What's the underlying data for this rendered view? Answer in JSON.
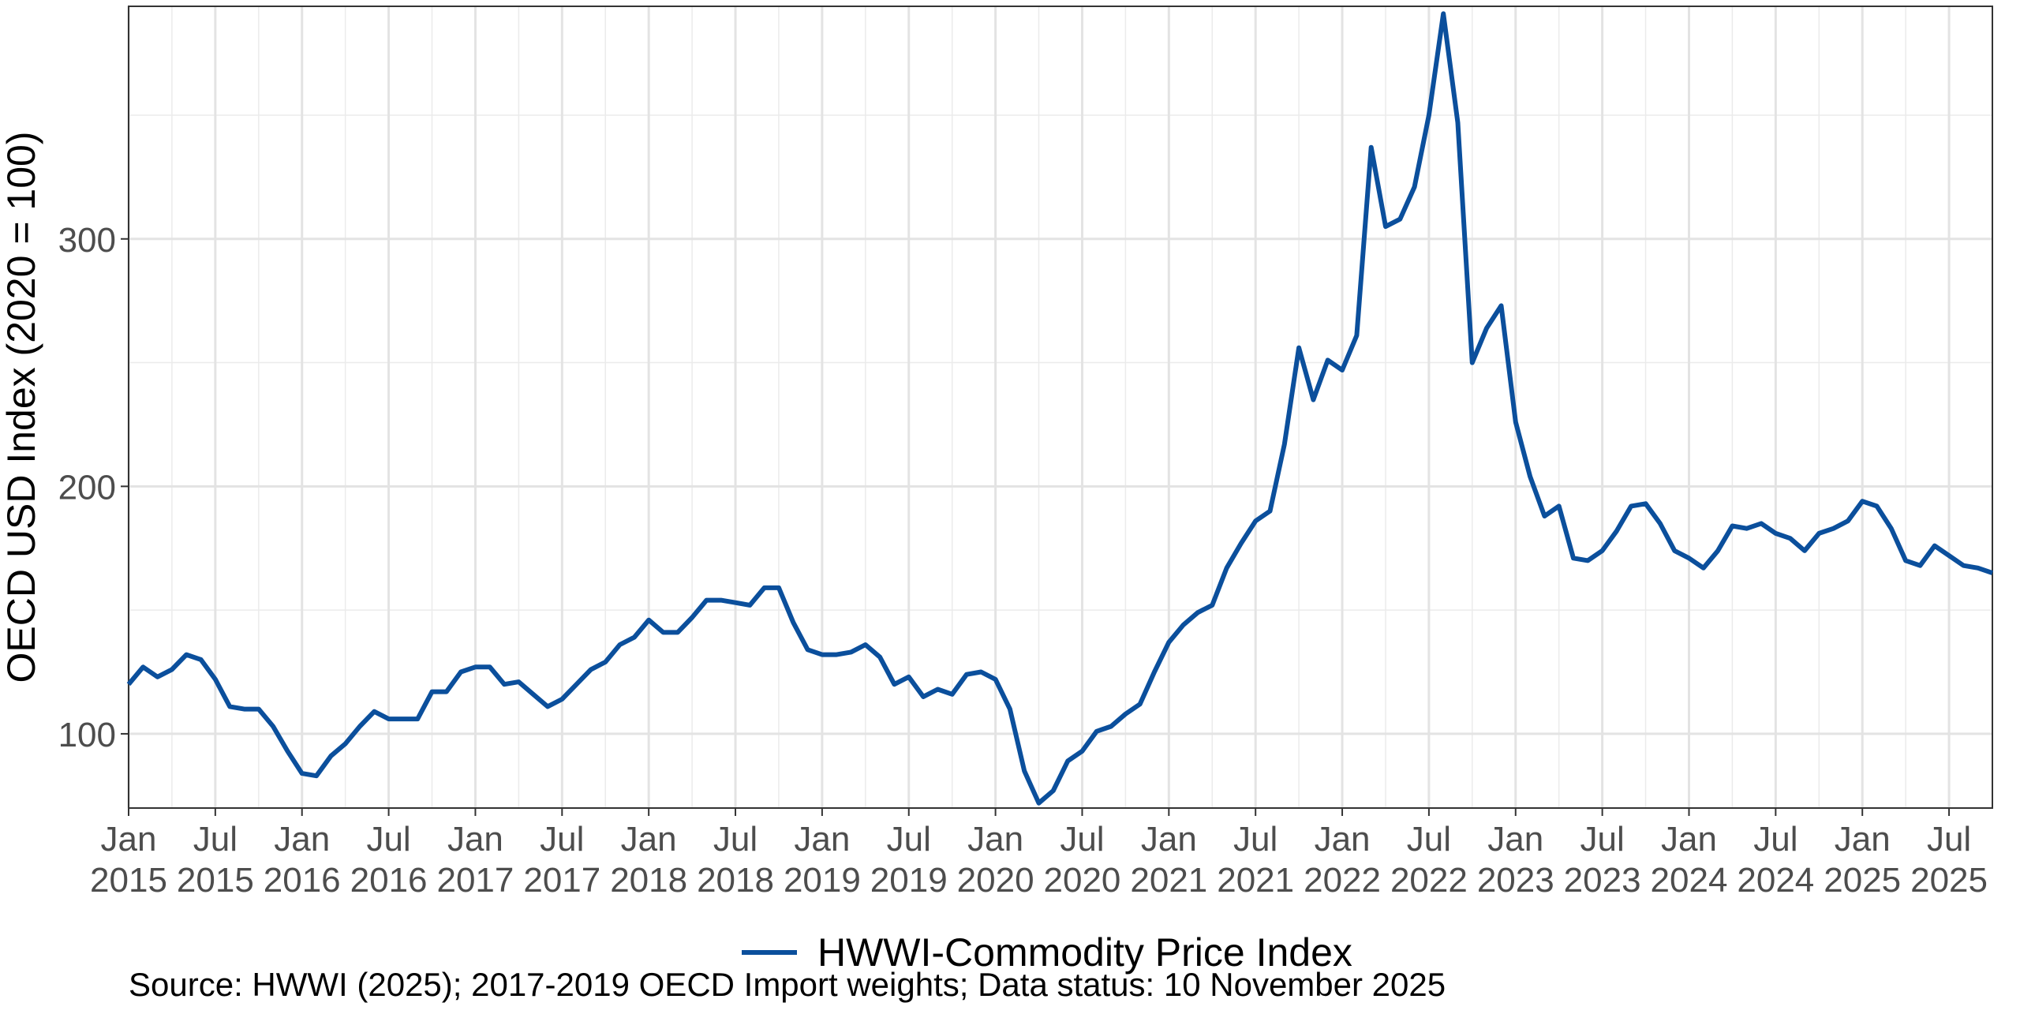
{
  "chart_data": {
    "type": "line",
    "ylabel": "OECD USD Index (2020 = 100)",
    "xlabel": "",
    "ylim": [
      70,
      394
    ],
    "y_ticks": [
      100,
      200,
      300
    ],
    "x_ticks": [
      {
        "date": "2015-01",
        "label_month": "Jan",
        "label_year": "2015"
      },
      {
        "date": "2015-07",
        "label_month": "Jul",
        "label_year": "2015"
      },
      {
        "date": "2016-01",
        "label_month": "Jan",
        "label_year": "2016"
      },
      {
        "date": "2016-07",
        "label_month": "Jul",
        "label_year": "2016"
      },
      {
        "date": "2017-01",
        "label_month": "Jan",
        "label_year": "2017"
      },
      {
        "date": "2017-07",
        "label_month": "Jul",
        "label_year": "2017"
      },
      {
        "date": "2018-01",
        "label_month": "Jan",
        "label_year": "2018"
      },
      {
        "date": "2018-07",
        "label_month": "Jul",
        "label_year": "2018"
      },
      {
        "date": "2019-01",
        "label_month": "Jan",
        "label_year": "2019"
      },
      {
        "date": "2019-07",
        "label_month": "Jul",
        "label_year": "2019"
      },
      {
        "date": "2020-01",
        "label_month": "Jan",
        "label_year": "2020"
      },
      {
        "date": "2020-07",
        "label_month": "Jul",
        "label_year": "2020"
      },
      {
        "date": "2021-01",
        "label_month": "Jan",
        "label_year": "2021"
      },
      {
        "date": "2021-07",
        "label_month": "Jul",
        "label_year": "2021"
      },
      {
        "date": "2022-01",
        "label_month": "Jan",
        "label_year": "2022"
      },
      {
        "date": "2022-07",
        "label_month": "Jul",
        "label_year": "2022"
      },
      {
        "date": "2023-01",
        "label_month": "Jan",
        "label_year": "2023"
      },
      {
        "date": "2023-07",
        "label_month": "Jul",
        "label_year": "2023"
      },
      {
        "date": "2024-01",
        "label_month": "Jan",
        "label_year": "2024"
      },
      {
        "date": "2024-07",
        "label_month": "Jul",
        "label_year": "2024"
      },
      {
        "date": "2025-01",
        "label_month": "Jan",
        "label_year": "2025"
      },
      {
        "date": "2025-07",
        "label_month": "Jul",
        "label_year": "2025"
      }
    ],
    "grid": true,
    "legend_position": "bottom",
    "series": [
      {
        "name": "HWWI-Commodity Price Index",
        "color": "#0b4f9c",
        "x": [
          "2015-01",
          "2015-02",
          "2015-03",
          "2015-04",
          "2015-05",
          "2015-06",
          "2015-07",
          "2015-08",
          "2015-09",
          "2015-10",
          "2015-11",
          "2015-12",
          "2016-01",
          "2016-02",
          "2016-03",
          "2016-04",
          "2016-05",
          "2016-06",
          "2016-07",
          "2016-08",
          "2016-09",
          "2016-10",
          "2016-11",
          "2016-12",
          "2017-01",
          "2017-02",
          "2017-03",
          "2017-04",
          "2017-05",
          "2017-06",
          "2017-07",
          "2017-08",
          "2017-09",
          "2017-10",
          "2017-11",
          "2017-12",
          "2018-01",
          "2018-02",
          "2018-03",
          "2018-04",
          "2018-05",
          "2018-06",
          "2018-07",
          "2018-08",
          "2018-09",
          "2018-10",
          "2018-11",
          "2018-12",
          "2019-01",
          "2019-02",
          "2019-03",
          "2019-04",
          "2019-05",
          "2019-06",
          "2019-07",
          "2019-08",
          "2019-09",
          "2019-10",
          "2019-11",
          "2019-12",
          "2020-01",
          "2020-02",
          "2020-03",
          "2020-04",
          "2020-05",
          "2020-06",
          "2020-07",
          "2020-08",
          "2020-09",
          "2020-10",
          "2020-11",
          "2020-12",
          "2021-01",
          "2021-02",
          "2021-03",
          "2021-04",
          "2021-05",
          "2021-06",
          "2021-07",
          "2021-08",
          "2021-09",
          "2021-10",
          "2021-11",
          "2021-12",
          "2022-01",
          "2022-02",
          "2022-03",
          "2022-04",
          "2022-05",
          "2022-06",
          "2022-07",
          "2022-08",
          "2022-09",
          "2022-10",
          "2022-11",
          "2022-12",
          "2023-01",
          "2023-02",
          "2023-03",
          "2023-04",
          "2023-05",
          "2023-06",
          "2023-07",
          "2023-08",
          "2023-09",
          "2023-10",
          "2023-11",
          "2023-12",
          "2024-01",
          "2024-02",
          "2024-03",
          "2024-04",
          "2024-05",
          "2024-06",
          "2024-07",
          "2024-08",
          "2024-09",
          "2024-10",
          "2024-11",
          "2024-12",
          "2025-01",
          "2025-02",
          "2025-03",
          "2025-04",
          "2025-05",
          "2025-06",
          "2025-07",
          "2025-08",
          "2025-09",
          "2025-10"
        ],
        "values": [
          120,
          127,
          123,
          126,
          132,
          130,
          122,
          111,
          110,
          110,
          103,
          93,
          84,
          83,
          91,
          96,
          103,
          109,
          106,
          106,
          106,
          117,
          117,
          125,
          127,
          127,
          120,
          121,
          116,
          111,
          114,
          120,
          126,
          129,
          136,
          139,
          146,
          141,
          141,
          147,
          154,
          154,
          153,
          152,
          159,
          159,
          145,
          134,
          132,
          132,
          133,
          136,
          131,
          120,
          123,
          115,
          118,
          116,
          124,
          125,
          122,
          110,
          85,
          72,
          77,
          89,
          93,
          101,
          103,
          108,
          112,
          125,
          137,
          144,
          149,
          152,
          167,
          177,
          186,
          190,
          217,
          256,
          235,
          251,
          247,
          261,
          337,
          305,
          308,
          321,
          350,
          391,
          347,
          250,
          264,
          273,
          226,
          204,
          188,
          192,
          171,
          170,
          174,
          182,
          192,
          193,
          185,
          174,
          171,
          167,
          174,
          184,
          183,
          185,
          181,
          179,
          174,
          181,
          183,
          186,
          194,
          192,
          183,
          170,
          168,
          176,
          172,
          168,
          167,
          165
        ]
      }
    ]
  },
  "legend": {
    "label": "HWWI-Commodity Price Index"
  },
  "caption": "Source: HWWI (2025); 2017-2019 OECD Import weights; Data status: 10 November 2025"
}
